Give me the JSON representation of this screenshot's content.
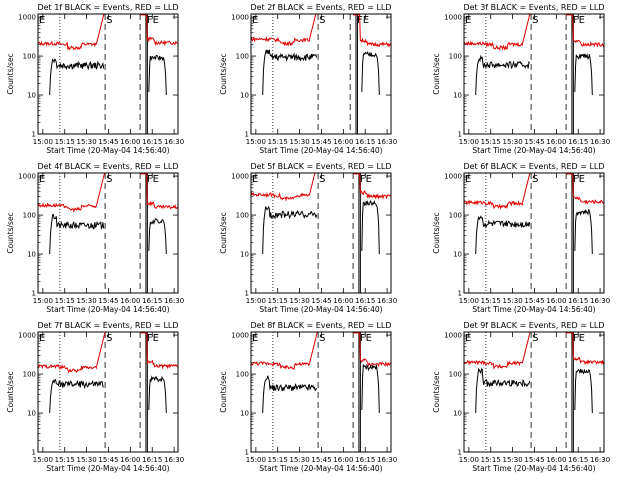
{
  "figure": {
    "title_suffix": "BLACK = Events, RED = LLD",
    "xlabel": "Start Time (20-May-04 14:56:40)",
    "ylabel": "Counts/sec",
    "x_ticks": [
      "15:00",
      "15:15",
      "15:30",
      "15:45",
      "16:00",
      "16:15",
      "16:30"
    ],
    "y_ticks": [
      "1",
      "10",
      "100",
      "1000"
    ],
    "flags": {
      "eclipse_start": "E",
      "saa": "S",
      "flare_end": "FE"
    },
    "colors": {
      "events": "#000000",
      "lld": "#e00000",
      "axes": "#000000"
    }
  },
  "chart_data": [
    {
      "type": "line",
      "title": "Det 1f BLACK = Events, RED = LLD",
      "xlim": [
        0,
        96
      ],
      "ylim": [
        1,
        1200
      ],
      "yscale": "log",
      "series": [
        {
          "name": "Events",
          "level": 58,
          "rise": 80,
          "late": 90
        },
        {
          "name": "LLD",
          "level": 200,
          "late": 220
        }
      ],
      "markers": {
        "dotted": [
          15
        ],
        "dashed": [
          46,
          70
        ],
        "solid": [
          74,
          75
        ]
      }
    },
    {
      "type": "line",
      "title": "Det 2f BLACK = Events, RED = LLD",
      "xlim": [
        0,
        96
      ],
      "ylim": [
        1,
        1200
      ],
      "yscale": "log",
      "series": [
        {
          "name": "Events",
          "level": 95,
          "rise": 130,
          "late": 110
        },
        {
          "name": "LLD",
          "level": 260,
          "late": 200
        }
      ],
      "markers": {
        "dotted": [
          15
        ],
        "dashed": [
          46,
          68
        ],
        "solid": [
          72,
          73
        ]
      }
    },
    {
      "type": "line",
      "title": "Det 3f BLACK = Events, RED = LLD",
      "xlim": [
        0,
        96
      ],
      "ylim": [
        1,
        1200
      ],
      "yscale": "log",
      "series": [
        {
          "name": "Events",
          "level": 60,
          "rise": 85,
          "late": 100
        },
        {
          "name": "LLD",
          "level": 200,
          "late": 200
        }
      ],
      "markers": {
        "dotted": [
          15
        ],
        "dashed": [
          46,
          70
        ],
        "solid": [
          74,
          75
        ]
      }
    },
    {
      "type": "line",
      "title": "Det 4f BLACK = Events, RED = LLD",
      "xlim": [
        0,
        96
      ],
      "ylim": [
        1,
        1200
      ],
      "yscale": "log",
      "series": [
        {
          "name": "Events",
          "level": 55,
          "rise": 90,
          "late": 70
        },
        {
          "name": "LLD",
          "level": 170,
          "late": 160
        }
      ],
      "markers": {
        "dotted": [
          15
        ],
        "dashed": [
          46,
          70
        ],
        "solid": [
          74,
          75
        ]
      }
    },
    {
      "type": "line",
      "title": "Det 5f BLACK = Events, RED = LLD",
      "xlim": [
        0,
        96
      ],
      "ylim": [
        1,
        1200
      ],
      "yscale": "log",
      "series": [
        {
          "name": "Events",
          "level": 105,
          "rise": 150,
          "late": 200
        },
        {
          "name": "LLD",
          "level": 320,
          "late": 300
        }
      ],
      "markers": {
        "dotted": [
          15
        ],
        "dashed": [
          46,
          70
        ],
        "solid": [
          74,
          75
        ]
      }
    },
    {
      "type": "line",
      "title": "Det 6f BLACK = Events, RED = LLD",
      "xlim": [
        0,
        96
      ],
      "ylim": [
        1,
        1200
      ],
      "yscale": "log",
      "series": [
        {
          "name": "Events",
          "level": 60,
          "rise": 90,
          "late": 120
        },
        {
          "name": "LLD",
          "level": 200,
          "late": 220
        }
      ],
      "markers": {
        "dotted": [
          15
        ],
        "dashed": [
          46,
          70
        ],
        "solid": [
          74,
          75
        ]
      }
    },
    {
      "type": "line",
      "title": "Det 7f BLACK = Events, RED = LLD",
      "xlim": [
        0,
        96
      ],
      "ylim": [
        1,
        1200
      ],
      "yscale": "log",
      "series": [
        {
          "name": "Events",
          "level": 55,
          "rise": 65,
          "late": 75
        },
        {
          "name": "LLD",
          "level": 150,
          "late": 160
        }
      ],
      "markers": {
        "dotted": [
          15
        ],
        "dashed": [
          46,
          70
        ],
        "solid": [
          74,
          75
        ]
      }
    },
    {
      "type": "line",
      "title": "Det 8f BLACK = Events, RED = LLD",
      "xlim": [
        0,
        96
      ],
      "ylim": [
        1,
        1200
      ],
      "yscale": "log",
      "series": [
        {
          "name": "Events",
          "level": 45,
          "rise": 80,
          "late": 150
        },
        {
          "name": "LLD",
          "level": 180,
          "late": 180
        }
      ],
      "markers": {
        "dotted": [
          15
        ],
        "dashed": [
          46,
          70
        ],
        "solid": [
          74,
          75
        ]
      }
    },
    {
      "type": "line",
      "title": "Det 9f BLACK = Events, RED = LLD",
      "xlim": [
        0,
        96
      ],
      "ylim": [
        1,
        1200
      ],
      "yscale": "log",
      "series": [
        {
          "name": "Events",
          "level": 60,
          "rise": 120,
          "late": 120
        },
        {
          "name": "LLD",
          "level": 190,
          "late": 200
        }
      ],
      "markers": {
        "dotted": [
          15
        ],
        "dashed": [
          46,
          70
        ],
        "solid": [
          74,
          75
        ]
      }
    }
  ]
}
